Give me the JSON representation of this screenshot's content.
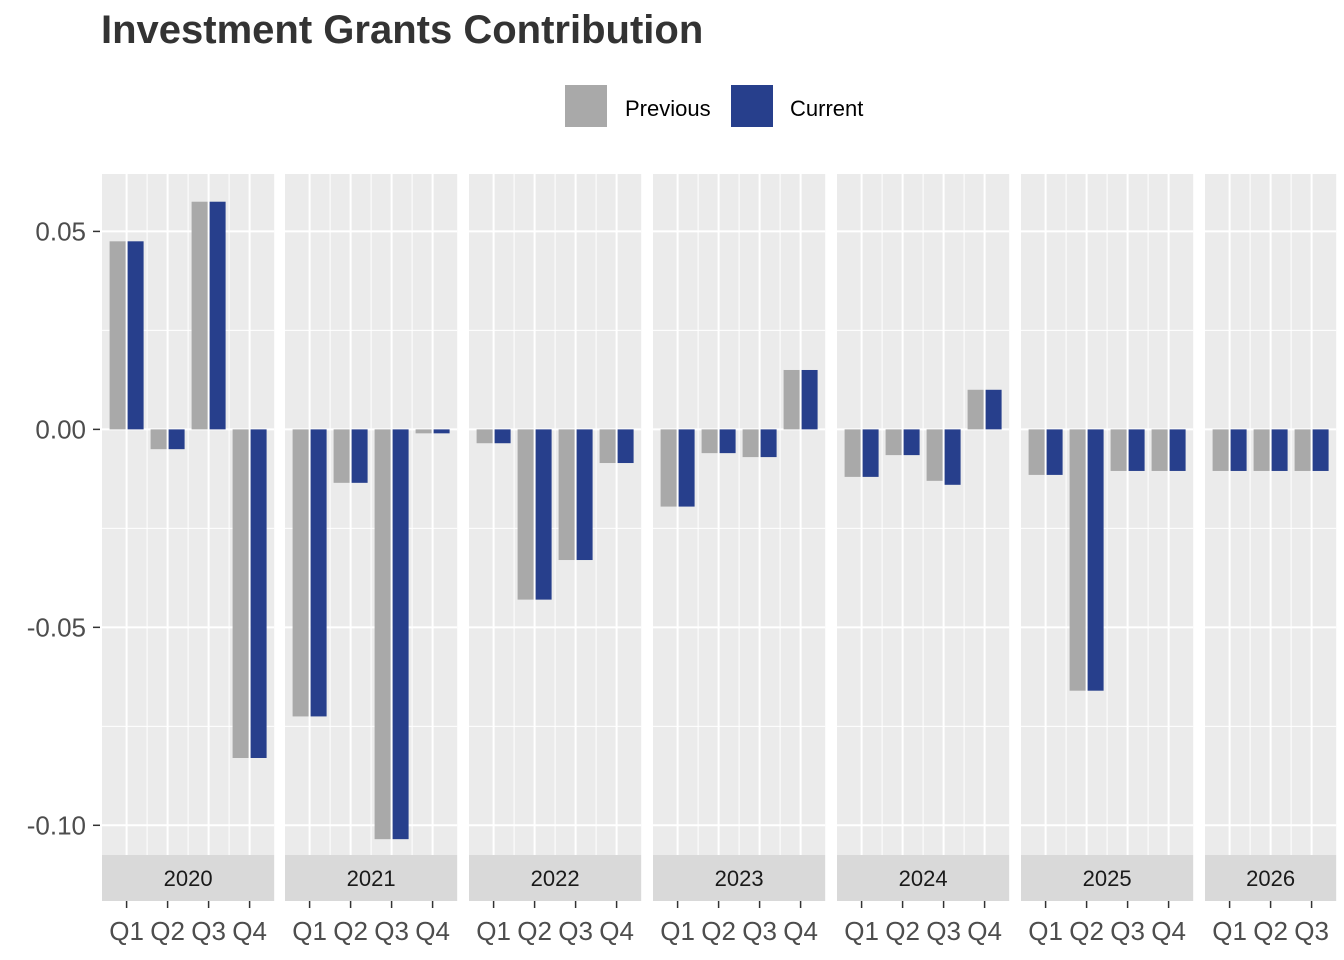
{
  "chart_data": {
    "type": "bar",
    "title": "Investment Grants Contribution",
    "xlabel": "",
    "ylabel": "",
    "ylim": [
      -0.1075,
      0.0645
    ],
    "yticks": [
      {
        "value": 0.05,
        "label": "0.05"
      },
      {
        "value": 0.0,
        "label": "0.00"
      },
      {
        "value": -0.05,
        "label": "-0.05"
      },
      {
        "value": -0.1,
        "label": "-0.10"
      }
    ],
    "legend": {
      "position": "top",
      "items": [
        {
          "name": "Previous",
          "color": "#a9a9a9"
        },
        {
          "name": "Current",
          "color": "#273f8c"
        }
      ]
    },
    "panel_background": "#ebebeb",
    "strip_background": "#d9d9d9",
    "facets": [
      {
        "label": "2020",
        "categories": [
          "Q1",
          "Q2",
          "Q3",
          "Q4"
        ],
        "series": [
          {
            "name": "Previous",
            "values": [
              0.0475,
              -0.005,
              0.0575,
              -0.083
            ]
          },
          {
            "name": "Current",
            "values": [
              0.0475,
              -0.005,
              0.0575,
              -0.083
            ]
          }
        ]
      },
      {
        "label": "2021",
        "categories": [
          "Q1",
          "Q2",
          "Q3",
          "Q4"
        ],
        "series": [
          {
            "name": "Previous",
            "values": [
              -0.0725,
              -0.0135,
              -0.1035,
              -0.001
            ]
          },
          {
            "name": "Current",
            "values": [
              -0.0725,
              -0.0135,
              -0.1035,
              -0.001
            ]
          }
        ]
      },
      {
        "label": "2022",
        "categories": [
          "Q1",
          "Q2",
          "Q3",
          "Q4"
        ],
        "series": [
          {
            "name": "Previous",
            "values": [
              -0.0035,
              -0.043,
              -0.033,
              -0.0085
            ]
          },
          {
            "name": "Current",
            "values": [
              -0.0035,
              -0.043,
              -0.033,
              -0.0085
            ]
          }
        ]
      },
      {
        "label": "2023",
        "categories": [
          "Q1",
          "Q2",
          "Q3",
          "Q4"
        ],
        "series": [
          {
            "name": "Previous",
            "values": [
              -0.0195,
              -0.006,
              -0.007,
              0.015
            ]
          },
          {
            "name": "Current",
            "values": [
              -0.0195,
              -0.006,
              -0.007,
              0.015
            ]
          }
        ]
      },
      {
        "label": "2024",
        "categories": [
          "Q1",
          "Q2",
          "Q3",
          "Q4"
        ],
        "series": [
          {
            "name": "Previous",
            "values": [
              -0.012,
              -0.0065,
              -0.013,
              0.01
            ]
          },
          {
            "name": "Current",
            "values": [
              -0.012,
              -0.0065,
              -0.014,
              0.01
            ]
          }
        ]
      },
      {
        "label": "2025",
        "categories": [
          "Q1",
          "Q2",
          "Q3",
          "Q4"
        ],
        "series": [
          {
            "name": "Previous",
            "values": [
              -0.0115,
              -0.066,
              -0.0105,
              -0.0105
            ]
          },
          {
            "name": "Current",
            "values": [
              -0.0115,
              -0.066,
              -0.0105,
              -0.0105
            ]
          }
        ]
      },
      {
        "label": "2026",
        "categories": [
          "Q1",
          "Q2",
          "Q3"
        ],
        "series": [
          {
            "name": "Previous",
            "values": [
              -0.0105,
              -0.0105,
              -0.0105
            ]
          },
          {
            "name": "Current",
            "values": [
              -0.0105,
              -0.0105,
              -0.0105
            ]
          }
        ]
      }
    ]
  }
}
